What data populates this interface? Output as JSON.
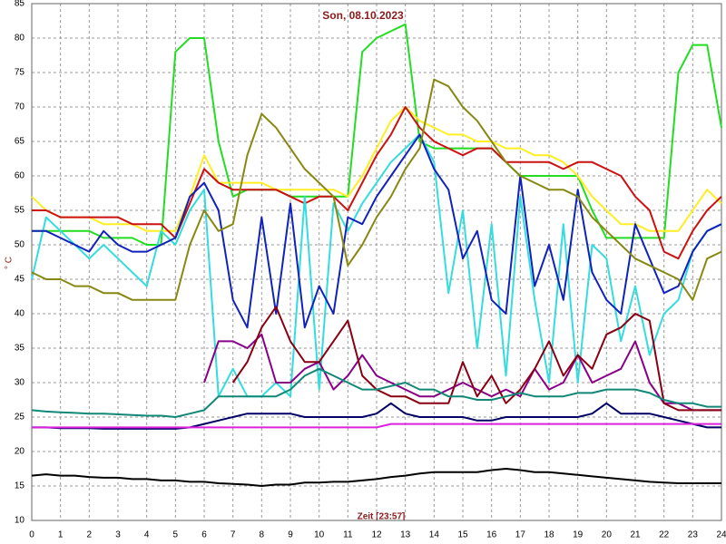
{
  "chart_data": {
    "type": "line",
    "title": "Son, 08.10.2023",
    "xlabel": "Zeit [23:57]",
    "ylabel": "° C",
    "x": [
      0,
      0.5,
      1,
      1.5,
      2,
      2.5,
      3,
      3.5,
      4,
      4.5,
      5,
      5.5,
      6,
      6.5,
      7,
      7.5,
      8,
      8.5,
      9,
      9.5,
      10,
      10.5,
      11,
      11.5,
      12,
      12.5,
      13,
      13.5,
      14,
      14.5,
      15,
      15.5,
      16,
      16.5,
      17,
      17.5,
      18,
      18.5,
      19,
      19.5,
      20,
      20.5,
      21,
      21.5,
      22,
      22.5,
      23,
      23.5,
      24
    ],
    "xlim": [
      0,
      24
    ],
    "ylim": [
      10,
      85
    ],
    "xticks": [
      0,
      1,
      2,
      3,
      4,
      5,
      6,
      7,
      8,
      9,
      10,
      11,
      12,
      13,
      14,
      15,
      16,
      17,
      18,
      19,
      20,
      21,
      22,
      23,
      24
    ],
    "yticks": [
      10,
      15,
      20,
      25,
      30,
      35,
      40,
      45,
      50,
      55,
      60,
      65,
      70,
      75,
      80,
      85
    ],
    "grid": true,
    "series": [
      {
        "color": "#22dd22",
        "values": [
          52,
          52,
          52,
          52,
          52,
          51,
          51,
          51,
          50,
          50,
          78,
          80,
          80,
          65,
          57,
          58,
          58,
          58,
          57,
          57,
          57,
          57,
          57,
          78,
          80,
          81,
          82,
          65,
          64,
          64,
          64,
          64,
          64,
          62,
          60,
          60,
          60,
          60,
          60,
          55,
          51,
          51,
          51,
          51,
          51,
          75,
          79,
          79,
          67
        ]
      },
      {
        "color": "#ffee22",
        "values": [
          57,
          55,
          54,
          54,
          54,
          53,
          53,
          53,
          52,
          52,
          52,
          57,
          63,
          59,
          59,
          59,
          59,
          58,
          58,
          58,
          58,
          58,
          57,
          60,
          64,
          68,
          70,
          68,
          67,
          66,
          66,
          65,
          65,
          64,
          64,
          63,
          63,
          62,
          60,
          57,
          55,
          53,
          53,
          52,
          52,
          52,
          55,
          58,
          56
        ]
      },
      {
        "color": "#cc1111",
        "values": [
          55,
          55,
          54,
          54,
          54,
          54,
          54,
          53,
          53,
          53,
          51,
          56,
          61,
          59,
          58,
          58,
          58,
          58,
          57,
          56,
          57,
          57,
          55,
          59,
          63,
          66,
          70,
          67,
          65,
          64,
          63,
          64,
          64,
          62,
          62,
          62,
          62,
          61,
          62,
          62,
          61,
          60,
          57,
          55,
          49,
          48,
          52,
          55,
          57
        ]
      },
      {
        "color": "#33dddd",
        "values": [
          45,
          54,
          52,
          50,
          48,
          50,
          48,
          46,
          44,
          52,
          50,
          55,
          58,
          28,
          32,
          28,
          28,
          30,
          28,
          57,
          29,
          56,
          52,
          56,
          59,
          62,
          64,
          66,
          62,
          43,
          55,
          35,
          53,
          31,
          57,
          42,
          30,
          53,
          30,
          50,
          48,
          36,
          44,
          34,
          40,
          42,
          49,
          52,
          53
        ]
      },
      {
        "color": "#1122bb",
        "values": [
          52,
          52,
          51,
          50,
          49,
          52,
          50,
          49,
          49,
          50,
          51,
          57,
          59,
          55,
          42,
          38,
          54,
          40,
          56,
          38,
          44,
          40,
          54,
          53,
          57,
          60,
          63,
          66,
          61,
          58,
          48,
          52,
          42,
          40,
          60,
          44,
          50,
          42,
          58,
          46,
          42,
          40,
          53,
          48,
          43,
          44,
          49,
          52,
          53
        ]
      },
      {
        "color": "#888811",
        "values": [
          46,
          45,
          45,
          44,
          44,
          43,
          43,
          42,
          42,
          42,
          42,
          50,
          55,
          52,
          53,
          63,
          69,
          67,
          64,
          61,
          59,
          57,
          47,
          50,
          54,
          57,
          61,
          64,
          74,
          73,
          70,
          68,
          65,
          62,
          60,
          59,
          58,
          58,
          57,
          54,
          52,
          50,
          48,
          47,
          46,
          45,
          42,
          48,
          49
        ]
      },
      {
        "color": "#880088",
        "values": [
          null,
          null,
          null,
          null,
          null,
          null,
          null,
          null,
          null,
          null,
          null,
          null,
          30,
          36,
          36,
          35,
          37,
          30,
          30,
          32,
          33,
          29,
          31,
          34,
          31,
          30,
          29,
          28,
          28,
          29,
          30,
          29,
          28,
          29,
          28,
          32,
          29,
          30,
          34,
          30,
          31,
          32,
          36,
          30,
          27,
          27,
          26,
          26,
          26
        ]
      },
      {
        "color": "#880011",
        "values": [
          null,
          null,
          null,
          null,
          null,
          null,
          null,
          null,
          null,
          null,
          null,
          null,
          null,
          null,
          30,
          33,
          38,
          41,
          36,
          33,
          33,
          36,
          39,
          31,
          29,
          28,
          28,
          27,
          27,
          27,
          33,
          28,
          31,
          27,
          29,
          32,
          36,
          31,
          34,
          32,
          37,
          38,
          40,
          39,
          27,
          26,
          26,
          26,
          26
        ]
      },
      {
        "color": "#118877",
        "values": [
          26,
          25.8,
          25.7,
          25.6,
          25.5,
          25.5,
          25.4,
          25.3,
          25.2,
          25.2,
          25,
          25.5,
          26,
          28,
          28,
          28,
          28,
          28,
          29,
          31,
          32,
          31,
          30,
          29,
          29,
          29.5,
          30,
          29,
          29,
          28,
          28,
          27.5,
          27.5,
          28,
          28.5,
          28,
          28,
          28,
          28.5,
          28.5,
          29,
          29,
          29,
          28.5,
          27.5,
          27,
          27,
          26.5,
          26.5
        ]
      },
      {
        "color": "#000066",
        "values": [
          23.5,
          23.5,
          23.4,
          23.4,
          23.4,
          23.3,
          23.3,
          23.3,
          23.3,
          23.3,
          23.3,
          23.5,
          24,
          24.5,
          25,
          25.5,
          25.5,
          25.5,
          25.5,
          25,
          25,
          25,
          25,
          25,
          25.5,
          27,
          25.5,
          25,
          25,
          25,
          25,
          24.5,
          24.5,
          25,
          25,
          25,
          25,
          25,
          25,
          25.5,
          27,
          25.5,
          25.5,
          25.5,
          25,
          24.5,
          24,
          23.5,
          23.5
        ]
      },
      {
        "color": "#dd22dd",
        "values": [
          23.5,
          23.5,
          23.5,
          23.5,
          23.5,
          23.5,
          23.5,
          23.5,
          23.5,
          23.5,
          23.5,
          23.5,
          23.5,
          23.5,
          23.5,
          23.5,
          23.5,
          23.5,
          23.5,
          23.5,
          23.5,
          23.5,
          23.5,
          23.5,
          23.5,
          24,
          24,
          24,
          24,
          24,
          24,
          24,
          24,
          24,
          24,
          24,
          24,
          24,
          24,
          24,
          24,
          24,
          24,
          24,
          24,
          24,
          24,
          24,
          24
        ]
      },
      {
        "color": "#000000",
        "values": [
          16.5,
          16.7,
          16.5,
          16.5,
          16.3,
          16.2,
          16.2,
          16,
          16,
          15.8,
          15.8,
          15.6,
          15.6,
          15.4,
          15.3,
          15.2,
          15,
          15.2,
          15.2,
          15.5,
          15.5,
          15.6,
          15.6,
          15.8,
          16,
          16.3,
          16.5,
          16.8,
          17,
          17,
          17,
          17,
          17.3,
          17.5,
          17.3,
          17,
          17,
          16.8,
          16.6,
          16.4,
          16.2,
          16,
          15.8,
          15.6,
          15.5,
          15.4,
          15.4,
          15.4,
          15.4
        ]
      }
    ]
  }
}
